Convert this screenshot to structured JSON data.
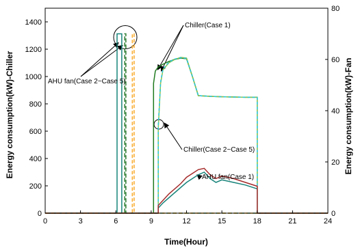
{
  "chart_data": {
    "type": "line",
    "title": "",
    "xlabel": "Time(Hour)",
    "ylabel_left": "Energy consumption(kW)-Chiller",
    "ylabel_right": "Energy consumption(kW)-Fan",
    "xlim": [
      0,
      24
    ],
    "ylim_left": [
      0,
      1500
    ],
    "ylim_right": [
      0,
      80
    ],
    "xticks": [
      "0",
      "3",
      "6",
      "9",
      "12",
      "15",
      "18",
      "21",
      "24"
    ],
    "yticks_left": [
      "0",
      "200",
      "400",
      "600",
      "800",
      "1000",
      "1200",
      "1400"
    ],
    "yticks_right": [
      "0",
      "20",
      "40",
      "60",
      "80"
    ],
    "grid": false,
    "legend": "none",
    "annotations": {
      "ahu_fan_case25": "AHU fan(Case 2~Case 5)",
      "chiller_case1": "Chiller(Case 1)",
      "chiller_case25": "Chiller(Case 2~Case 5)",
      "ahu_fan_case1": "AHU fan(Case 1)"
    },
    "series": [
      {
        "axis": "left",
        "color": "#1f7a1f",
        "dash": "",
        "x": [
          0,
          9.2,
          9.2,
          9.35,
          9.6,
          10,
          10.5,
          11,
          11.5,
          12,
          12.5,
          13,
          14,
          15,
          16,
          17,
          18,
          18,
          24
        ],
        "y": [
          0,
          0,
          950,
          1040,
          1070,
          1090,
          1110,
          1125,
          1135,
          1130,
          1000,
          860,
          855,
          852,
          850,
          848,
          848,
          0,
          0
        ]
      },
      {
        "axis": "left",
        "color": "#8bc34a",
        "dash": "",
        "x": [
          0,
          9.6,
          9.6,
          9.8,
          10,
          10.5,
          11,
          11.5,
          12,
          12.5,
          13,
          14,
          15,
          16,
          17,
          18,
          18,
          24
        ],
        "y": [
          0,
          0,
          620,
          950,
          1050,
          1100,
          1125,
          1140,
          1135,
          1000,
          860,
          855,
          852,
          850,
          848,
          848,
          0,
          0
        ]
      },
      {
        "axis": "left",
        "color": "#26c6da",
        "dash": "4,3",
        "x": [
          0,
          9.6,
          9.6,
          9.8,
          10,
          10.5,
          11,
          11.5,
          12,
          12.5,
          13,
          14,
          15,
          16,
          17,
          18,
          18,
          24
        ],
        "y": [
          0,
          0,
          640,
          960,
          1055,
          1105,
          1128,
          1138,
          1132,
          1000,
          860,
          855,
          852,
          850,
          848,
          848,
          0,
          0
        ]
      },
      {
        "axis": "right",
        "color": "#17837a",
        "dash": "",
        "x": [
          0,
          6.1,
          6.1,
          6.5,
          6.5,
          9.6,
          9.6,
          10,
          10.5,
          11,
          11.5,
          12,
          12.5,
          13,
          13.5,
          14,
          14.5,
          15,
          15.5,
          16,
          17,
          18,
          18,
          24
        ],
        "y": [
          0,
          0,
          70,
          70,
          0,
          0,
          2,
          4,
          6,
          8,
          10,
          12,
          13.5,
          15,
          16,
          13.5,
          12,
          13,
          12.5,
          12,
          11,
          9.5,
          0,
          0
        ]
      },
      {
        "axis": "right",
        "color": "#2e7d32",
        "dash": "6,3",
        "x": [
          0,
          6.75,
          6.75,
          6.85,
          6.85,
          24
        ],
        "y": [
          0,
          0,
          70,
          70,
          0,
          0
        ]
      },
      {
        "axis": "right",
        "color": "#f9a825",
        "dash": "5,3",
        "x": [
          0,
          7.4,
          7.4,
          7.55,
          7.55,
          24
        ],
        "y": [
          0,
          0,
          70,
          70,
          0,
          0
        ]
      },
      {
        "axis": "right",
        "color": "#a52a2a",
        "dash": "",
        "x": [
          0,
          9.6,
          9.6,
          10,
          10.5,
          11,
          11.5,
          12,
          12.5,
          13,
          13.5,
          14,
          14.5,
          15,
          15.5,
          16,
          17,
          18,
          18,
          24
        ],
        "y": [
          0,
          0,
          3,
          5,
          7.5,
          9.5,
          11.5,
          14,
          15.5,
          17,
          17.5,
          15,
          13.5,
          14.5,
          14,
          13.5,
          12,
          10.5,
          0,
          0
        ]
      }
    ]
  }
}
